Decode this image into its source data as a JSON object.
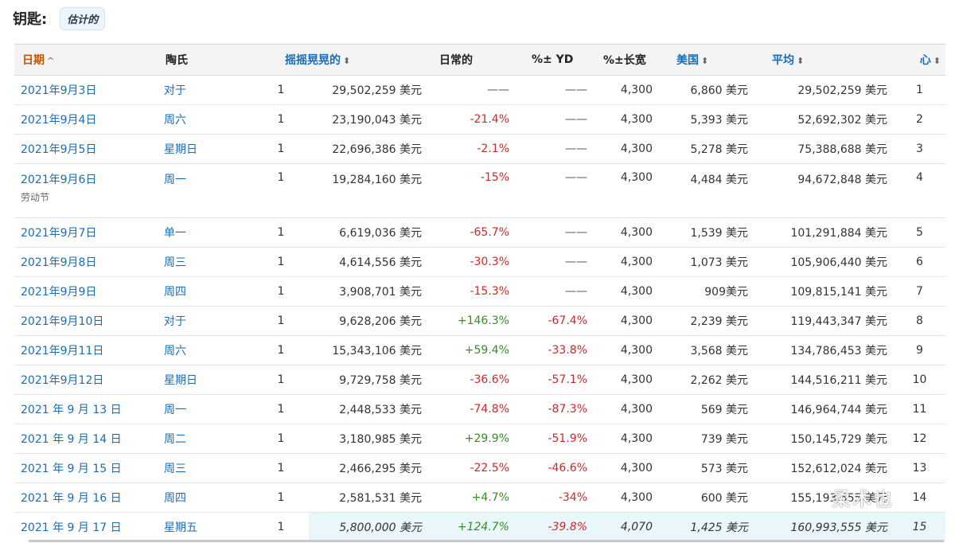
{
  "legend": {
    "label": "钥匙:",
    "badge": "估计的"
  },
  "columns": {
    "date": "日期",
    "day": "陶氏",
    "rank": "摇摇晃晃的",
    "daily": "日常的",
    "pct_yd": "%± YD",
    "pct_lw": "%±长宽",
    "theaters": "美国",
    "avg": "平均",
    "to_date": "心"
  },
  "rows": [
    {
      "date": "2021年9月3日",
      "holiday": "",
      "day": "对于",
      "rank": "1",
      "daily": "29,502,259 美元",
      "pct_yd": "——",
      "pct_yd_type": "dash",
      "pct_lw": "——",
      "pct_lw_type": "dash",
      "theaters": "4,300",
      "avg": "6,860 美元",
      "to_date": "29,502,259 美元",
      "num": "1",
      "est": false
    },
    {
      "date": "2021年9月4日",
      "holiday": "",
      "day": "周六",
      "rank": "1",
      "daily": "23,190,043 美元",
      "pct_yd": "-21.4%",
      "pct_yd_type": "neg",
      "pct_lw": "——",
      "pct_lw_type": "dash",
      "theaters": "4,300",
      "avg": "5,393 美元",
      "to_date": "52,692,302 美元",
      "num": "2",
      "est": false
    },
    {
      "date": "2021年9月5日",
      "holiday": "",
      "day": "星期日",
      "rank": "1",
      "daily": "22,696,386 美元",
      "pct_yd": "-2.1%",
      "pct_yd_type": "neg",
      "pct_lw": "——",
      "pct_lw_type": "dash",
      "theaters": "4,300",
      "avg": "5,278 美元",
      "to_date": "75,388,688 美元",
      "num": "3",
      "est": false
    },
    {
      "date": "2021年9月6日",
      "holiday": "劳动节",
      "day": "周一",
      "rank": "1",
      "daily": "19,284,160 美元",
      "pct_yd": "-15%",
      "pct_yd_type": "neg",
      "pct_lw": "——",
      "pct_lw_type": "dash",
      "theaters": "4,300",
      "avg": "4,484 美元",
      "to_date": "94,672,848 美元",
      "num": "4",
      "est": false
    },
    {
      "date": "2021年9月7日",
      "holiday": "",
      "day": "单一",
      "rank": "1",
      "daily": "6,619,036 美元",
      "pct_yd": "-65.7%",
      "pct_yd_type": "neg",
      "pct_lw": "——",
      "pct_lw_type": "dash",
      "theaters": "4,300",
      "avg": "1,539 美元",
      "to_date": "101,291,884 美元",
      "num": "5",
      "est": false
    },
    {
      "date": "2021年9月8日",
      "holiday": "",
      "day": "周三",
      "rank": "1",
      "daily": "4,614,556 美元",
      "pct_yd": "-30.3%",
      "pct_yd_type": "neg",
      "pct_lw": "——",
      "pct_lw_type": "dash",
      "theaters": "4,300",
      "avg": "1,073 美元",
      "to_date": "105,906,440 美元",
      "num": "6",
      "est": false
    },
    {
      "date": "2021年9月9日",
      "holiday": "",
      "day": "周四",
      "rank": "1",
      "daily": "3,908,701 美元",
      "pct_yd": "-15.3%",
      "pct_yd_type": "neg",
      "pct_lw": "——",
      "pct_lw_type": "dash",
      "theaters": "4,300",
      "avg": "909美元",
      "to_date": "109,815,141 美元",
      "num": "7",
      "est": false
    },
    {
      "date": "2021年9月10日",
      "holiday": "",
      "day": "对于",
      "rank": "1",
      "daily": "9,628,206 美元",
      "pct_yd": "+146.3%",
      "pct_yd_type": "pos",
      "pct_lw": "-67.4%",
      "pct_lw_type": "neg",
      "theaters": "4,300",
      "avg": "2,239 美元",
      "to_date": "119,443,347 美元",
      "num": "8",
      "est": false
    },
    {
      "date": "2021年9月11日",
      "holiday": "",
      "day": "周六",
      "rank": "1",
      "daily": "15,343,106 美元",
      "pct_yd": "+59.4%",
      "pct_yd_type": "pos",
      "pct_lw": "-33.8%",
      "pct_lw_type": "neg",
      "theaters": "4,300",
      "avg": "3,568 美元",
      "to_date": "134,786,453 美元",
      "num": "9",
      "est": false
    },
    {
      "date": "2021年9月12日",
      "holiday": "",
      "day": "星期日",
      "rank": "1",
      "daily": "9,729,758 美元",
      "pct_yd": "-36.6%",
      "pct_yd_type": "neg",
      "pct_lw": "-57.1%",
      "pct_lw_type": "neg",
      "theaters": "4,300",
      "avg": "2,262 美元",
      "to_date": "144,516,211 美元",
      "num": "10",
      "est": false
    },
    {
      "date": "2021 年 9 月 13 日",
      "holiday": "",
      "day": "周一",
      "rank": "1",
      "daily": "2,448,533 美元",
      "pct_yd": "-74.8%",
      "pct_yd_type": "neg",
      "pct_lw": "-87.3%",
      "pct_lw_type": "neg",
      "theaters": "4,300",
      "avg": "569 美元",
      "to_date": "146,964,744 美元",
      "num": "11",
      "est": false
    },
    {
      "date": "2021 年 9 月 14 日",
      "holiday": "",
      "day": "周二",
      "rank": "1",
      "daily": "3,180,985 美元",
      "pct_yd": "+29.9%",
      "pct_yd_type": "pos",
      "pct_lw": "-51.9%",
      "pct_lw_type": "neg",
      "theaters": "4,300",
      "avg": "739 美元",
      "to_date": "150,145,729 美元",
      "num": "12",
      "est": false
    },
    {
      "date": "2021 年 9 月 15 日",
      "holiday": "",
      "day": "周三",
      "rank": "1",
      "daily": "2,466,295 美元",
      "pct_yd": "-22.5%",
      "pct_yd_type": "neg",
      "pct_lw": "-46.6%",
      "pct_lw_type": "neg",
      "theaters": "4,300",
      "avg": "573 美元",
      "to_date": "152,612,024 美元",
      "num": "13",
      "est": false
    },
    {
      "date": "2021 年 9 月 16 日",
      "holiday": "",
      "day": "周四",
      "rank": "1",
      "daily": "2,581,531 美元",
      "pct_yd": "+4.7%",
      "pct_yd_type": "pos",
      "pct_lw": "-34%",
      "pct_lw_type": "neg",
      "theaters": "4,300",
      "avg": "600 美元",
      "to_date": "155,193,555 美元",
      "num": "14",
      "est": false
    },
    {
      "date": "2021 年 9 月 17 日",
      "holiday": "",
      "day": "星期五",
      "rank": "1",
      "daily": "5,800,000 美元",
      "pct_yd": "+124.7%",
      "pct_yd_type": "pos",
      "pct_lw": "-39.8%",
      "pct_lw_type": "neg",
      "theaters": "4,070",
      "avg": "1,425 美元",
      "to_date": "160,993,555 美元",
      "num": "15",
      "est": true
    }
  ],
  "colors": {
    "link": "#1a6db5",
    "sorted": "#c45500",
    "negative": "#c82a2a",
    "positive": "#3a8a2a",
    "estimate_bg": "#e9f7fb"
  },
  "watermark": "柔术也"
}
